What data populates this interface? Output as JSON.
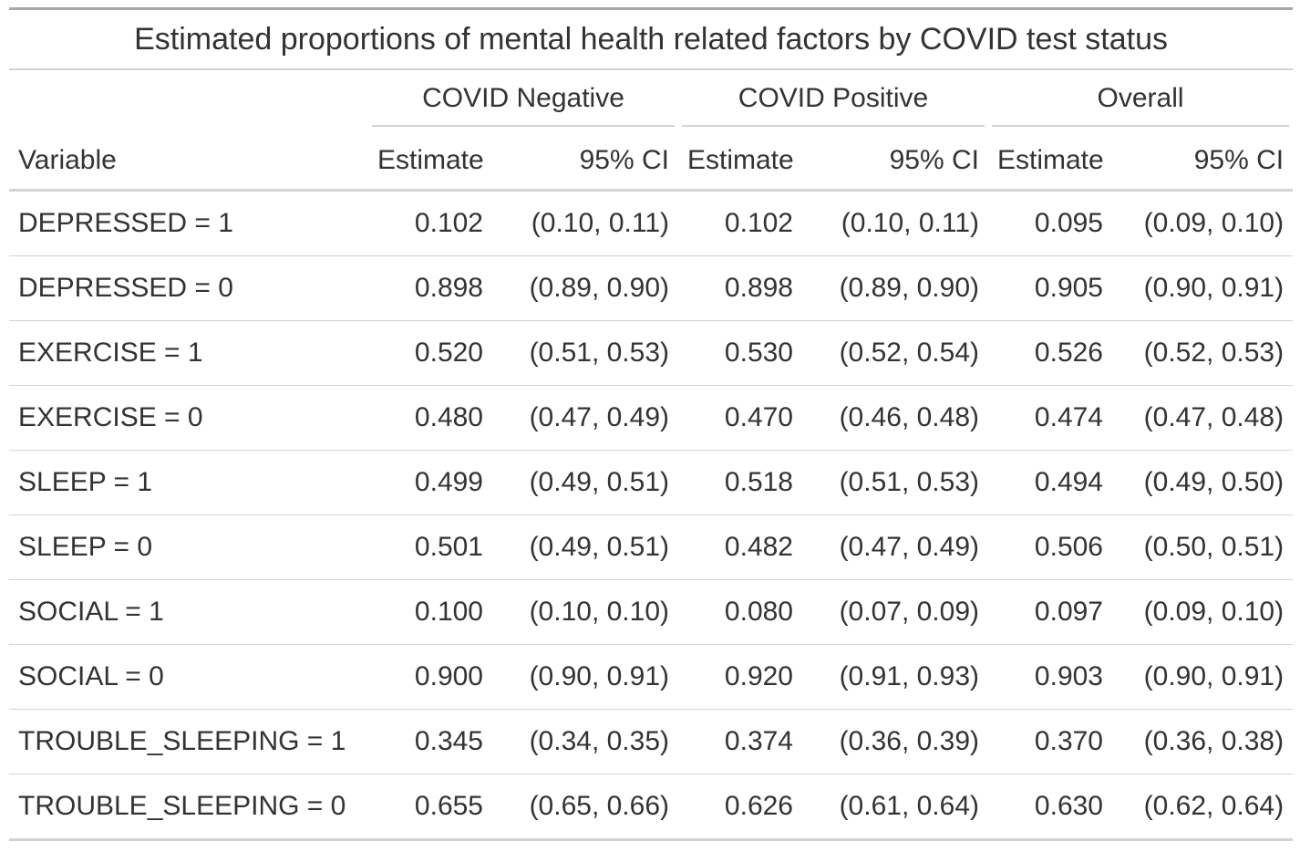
{
  "title": "Estimated proportions of mental health related factors by COVID test status",
  "groups": [
    "COVID Negative",
    "COVID Positive",
    "Overall"
  ],
  "columns": {
    "variable": "Variable",
    "estimate": "Estimate",
    "ci": "95% CI"
  },
  "rows": [
    {
      "variable": "DEPRESSED = 1",
      "neg_est": "0.102",
      "neg_ci": "(0.10, 0.11)",
      "pos_est": "0.102",
      "pos_ci": "(0.10, 0.11)",
      "all_est": "0.095",
      "all_ci": "(0.09, 0.10)"
    },
    {
      "variable": "DEPRESSED = 0",
      "neg_est": "0.898",
      "neg_ci": "(0.89, 0.90)",
      "pos_est": "0.898",
      "pos_ci": "(0.89, 0.90)",
      "all_est": "0.905",
      "all_ci": "(0.90, 0.91)"
    },
    {
      "variable": "EXERCISE = 1",
      "neg_est": "0.520",
      "neg_ci": "(0.51, 0.53)",
      "pos_est": "0.530",
      "pos_ci": "(0.52, 0.54)",
      "all_est": "0.526",
      "all_ci": "(0.52, 0.53)"
    },
    {
      "variable": "EXERCISE = 0",
      "neg_est": "0.480",
      "neg_ci": "(0.47, 0.49)",
      "pos_est": "0.470",
      "pos_ci": "(0.46, 0.48)",
      "all_est": "0.474",
      "all_ci": "(0.47, 0.48)"
    },
    {
      "variable": "SLEEP = 1",
      "neg_est": "0.499",
      "neg_ci": "(0.49, 0.51)",
      "pos_est": "0.518",
      "pos_ci": "(0.51, 0.53)",
      "all_est": "0.494",
      "all_ci": "(0.49, 0.50)"
    },
    {
      "variable": "SLEEP = 0",
      "neg_est": "0.501",
      "neg_ci": "(0.49, 0.51)",
      "pos_est": "0.482",
      "pos_ci": "(0.47, 0.49)",
      "all_est": "0.506",
      "all_ci": "(0.50, 0.51)"
    },
    {
      "variable": "SOCIAL = 1",
      "neg_est": "0.100",
      "neg_ci": "(0.10, 0.10)",
      "pos_est": "0.080",
      "pos_ci": "(0.07, 0.09)",
      "all_est": "0.097",
      "all_ci": "(0.09, 0.10)"
    },
    {
      "variable": "SOCIAL = 0",
      "neg_est": "0.900",
      "neg_ci": "(0.90, 0.91)",
      "pos_est": "0.920",
      "pos_ci": "(0.91, 0.93)",
      "all_est": "0.903",
      "all_ci": "(0.90, 0.91)"
    },
    {
      "variable": "TROUBLE_SLEEPING = 1",
      "neg_est": "0.345",
      "neg_ci": "(0.34, 0.35)",
      "pos_est": "0.374",
      "pos_ci": "(0.36, 0.39)",
      "all_est": "0.370",
      "all_ci": "(0.36, 0.38)"
    },
    {
      "variable": "TROUBLE_SLEEPING = 0",
      "neg_est": "0.655",
      "neg_ci": "(0.65, 0.66)",
      "pos_est": "0.626",
      "pos_ci": "(0.61, 0.64)",
      "all_est": "0.630",
      "all_ci": "(0.62, 0.64)"
    }
  ]
}
